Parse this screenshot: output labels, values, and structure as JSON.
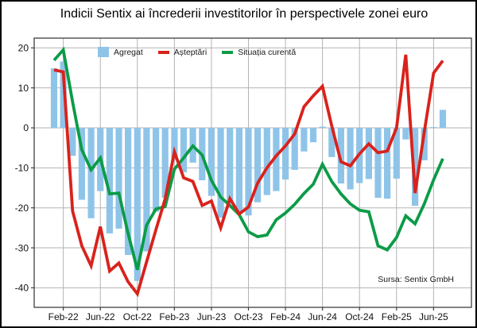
{
  "title": "Indicii Sentix ai încrederii investitorilor în perspectivele zonei euro",
  "source_note": "Sursa: Sentix GmbH",
  "legend": {
    "agregat": "Agregat",
    "asteptari": "Așteptări",
    "situatia": "Situația curentă"
  },
  "colors": {
    "bar": "#8FC4E9",
    "expectations_line": "#D9221C",
    "current_line": "#0C9B47",
    "grid": "#B3B3B3",
    "frame": "#3F3F3F",
    "tick_text": "#121212",
    "background": "#FFFFFF"
  },
  "chart_data": {
    "type": "bar",
    "subtype": "bar-plus-two-lines",
    "title": "Indicii Sentix ai încrederii investitorilor în perspectivele zonei euro",
    "xlabel": "",
    "ylabel": "",
    "ylim": [
      -45,
      22.5
    ],
    "grid": true,
    "legend_position": "top-left-inside",
    "yticks": [
      20,
      10,
      0,
      -10,
      -20,
      -30,
      -40
    ],
    "xtick_labels": [
      "Feb-22",
      "Jun-22",
      "Oct-22",
      "Feb-23",
      "Jun-23",
      "Oct-23",
      "Feb-24",
      "Jun-24",
      "Oct-24",
      "Feb-25",
      "Jun-25"
    ],
    "xtick_month_indices": [
      1,
      5,
      9,
      13,
      17,
      21,
      25,
      29,
      33,
      37,
      41
    ],
    "x_monthly": [
      "Jan-22",
      "Feb-22",
      "Mar-22",
      "Apr-22",
      "May-22",
      "Jun-22",
      "Jul-22",
      "Aug-22",
      "Sep-22",
      "Oct-22",
      "Nov-22",
      "Dec-22",
      "Jan-23",
      "Feb-23",
      "Mar-23",
      "Apr-23",
      "May-23",
      "Jun-23",
      "Jul-23",
      "Aug-23",
      "Sep-23",
      "Oct-23",
      "Nov-23",
      "Dec-23",
      "Jan-24",
      "Feb-24",
      "Mar-24",
      "Apr-24",
      "May-24",
      "Jun-24",
      "Jul-24",
      "Aug-24",
      "Sep-24",
      "Oct-24",
      "Nov-24",
      "Dec-24",
      "Jan-25",
      "Feb-25",
      "Mar-25",
      "Apr-25",
      "May-25",
      "Jun-25",
      "Jul-25"
    ],
    "series": [
      {
        "name": "Agregat",
        "type": "bar",
        "values": [
          14.9,
          16.6,
          -7.0,
          -18.0,
          -22.6,
          -15.8,
          -26.4,
          -25.2,
          -31.8,
          -38.3,
          -30.9,
          -21.0,
          -17.5,
          -8.0,
          -11.1,
          -8.7,
          -13.1,
          -17.0,
          -22.5,
          -18.9,
          -21.5,
          -21.9,
          -18.6,
          -16.8,
          -15.8,
          -12.9,
          -10.5,
          -5.9,
          -3.6,
          0.3,
          -7.3,
          -13.9,
          -15.4,
          -13.8,
          -12.8,
          -17.5,
          -17.7,
          -12.7,
          -2.9,
          -19.5,
          -8.1,
          0.2,
          4.5
        ]
      },
      {
        "name": "Așteptări",
        "type": "line",
        "values": [
          14.5,
          14.0,
          -20.8,
          -29.5,
          -34.5,
          -24.7,
          -35.8,
          -33.8,
          -38.5,
          -41.5,
          -33.5,
          -25.5,
          -17.8,
          -6.0,
          -12.5,
          -13.4,
          -19.4,
          -18.3,
          -25.0,
          -17.7,
          -21.5,
          -19.8,
          -13.8,
          -10.0,
          -7.0,
          -4.5,
          -1.5,
          5.3,
          8.0,
          10.4,
          0.5,
          -8.5,
          -9.5,
          -6.5,
          -4.0,
          -6.2,
          -5.8,
          0.0,
          18.3,
          -16.3,
          -1.0,
          13.7,
          16.8
        ]
      },
      {
        "name": "Situația curentă",
        "type": "line",
        "values": [
          16.9,
          19.5,
          6.5,
          -5.5,
          -10.5,
          -7.5,
          -16.5,
          -16.3,
          -26.4,
          -35.5,
          -24.3,
          -20.3,
          -19.7,
          -10.3,
          -7.5,
          -4.5,
          -6.8,
          -13.1,
          -17.3,
          -19.4,
          -21.7,
          -26.0,
          -27.2,
          -26.8,
          -23.0,
          -21.3,
          -19.1,
          -16.4,
          -14.1,
          -9.1,
          -13.4,
          -16.5,
          -19.0,
          -20.6,
          -21.0,
          -29.5,
          -30.5,
          -27.4,
          -22.0,
          -24.0,
          -19.0,
          -13.0,
          -7.7
        ]
      }
    ]
  }
}
